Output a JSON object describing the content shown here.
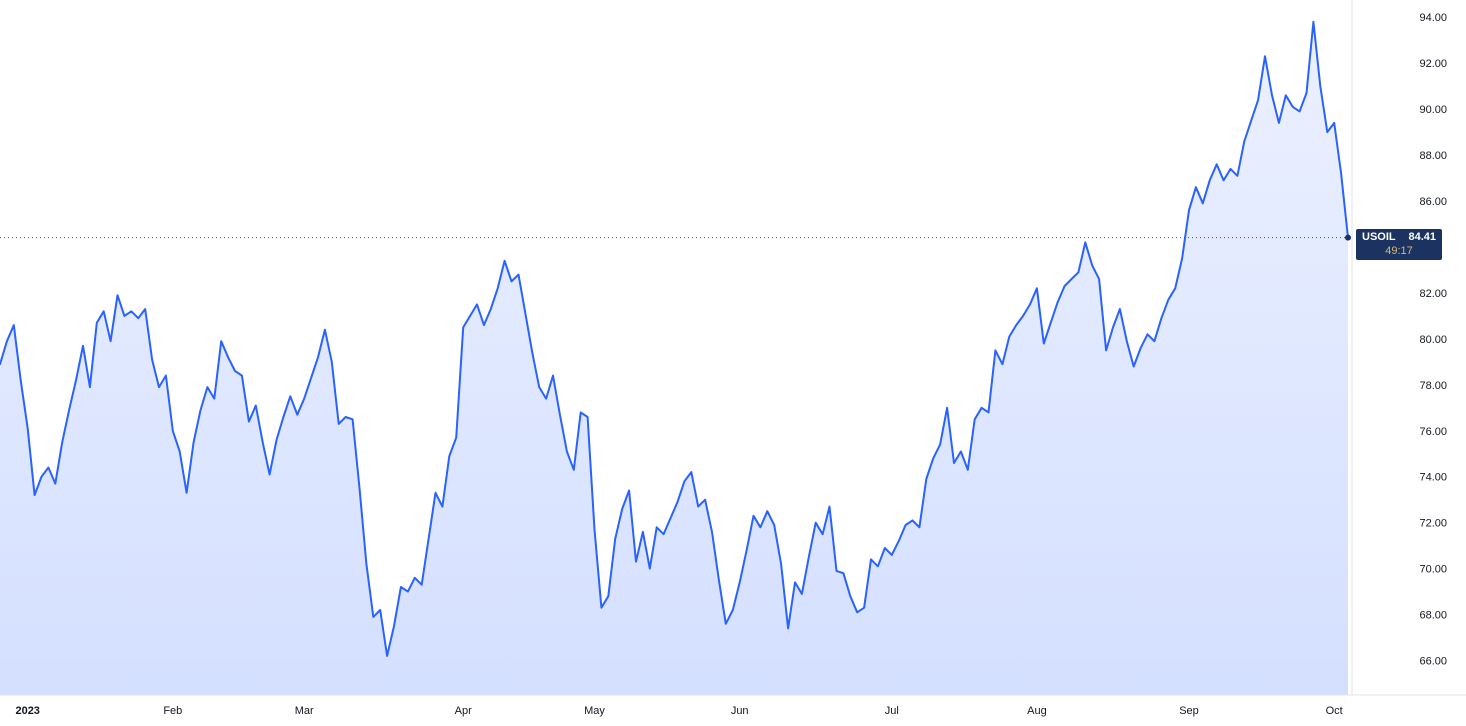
{
  "quote": {
    "symbol": "USOIL",
    "price_label": "84.41",
    "countdown": "49:17"
  },
  "colors": {
    "line": "#2962FF",
    "area_top": "rgba(41,98,255,0.09)",
    "area_bottom": "rgba(41,98,255,0.20)",
    "badge_bg": "#1c3261",
    "badge_text": "#ffffff",
    "countdown_text": "#d8b97c",
    "axis_text": "#131722",
    "separator": "#e0e3eb",
    "last_price_line": "#50535e"
  },
  "chart_data": {
    "type": "area",
    "series_name": "USOIL",
    "title": "",
    "xlabel": "",
    "ylabel": "",
    "grid": false,
    "legend": null,
    "last_price": 84.41,
    "ylim": [
      64.5,
      94.75
    ],
    "y_ticks": [
      {
        "value": 94,
        "label": "94.00"
      },
      {
        "value": 92,
        "label": "92.00"
      },
      {
        "value": 90,
        "label": "90.00"
      },
      {
        "value": 88,
        "label": "88.00"
      },
      {
        "value": 86,
        "label": "86.00"
      },
      {
        "value": 82,
        "label": "82.00"
      },
      {
        "value": 80,
        "label": "80.00"
      },
      {
        "value": 78,
        "label": "78.00"
      },
      {
        "value": 76,
        "label": "76.00"
      },
      {
        "value": 74,
        "label": "74.00"
      },
      {
        "value": 72,
        "label": "72.00"
      },
      {
        "value": 70,
        "label": "70.00"
      },
      {
        "value": 68,
        "label": "68.00"
      },
      {
        "value": 66,
        "label": "66.00"
      }
    ],
    "x_ticks": [
      {
        "label": "2023",
        "index": 4,
        "year": true
      },
      {
        "label": "Feb",
        "index": 25
      },
      {
        "label": "Mar",
        "index": 44
      },
      {
        "label": "Apr",
        "index": 67
      },
      {
        "label": "May",
        "index": 86
      },
      {
        "label": "Jun",
        "index": 107
      },
      {
        "label": "Jul",
        "index": 129
      },
      {
        "label": "Aug",
        "index": 150
      },
      {
        "label": "Sep",
        "index": 172
      },
      {
        "label": "Oct",
        "index": 193
      }
    ],
    "values": [
      78.9,
      79.9,
      80.6,
      78.2,
      76.1,
      73.2,
      74.0,
      74.4,
      73.7,
      75.5,
      76.9,
      78.2,
      79.7,
      77.9,
      80.7,
      81.2,
      79.9,
      81.9,
      81.0,
      81.2,
      80.9,
      81.3,
      79.1,
      77.9,
      78.4,
      76.0,
      75.1,
      73.3,
      75.5,
      76.9,
      77.9,
      77.4,
      79.9,
      79.2,
      78.6,
      78.4,
      76.4,
      77.1,
      75.5,
      74.1,
      75.6,
      76.6,
      77.5,
      76.7,
      77.4,
      78.3,
      79.2,
      80.4,
      79.0,
      76.3,
      76.6,
      76.5,
      73.5,
      70.2,
      67.9,
      68.2,
      66.2,
      67.5,
      69.2,
      69.0,
      69.6,
      69.3,
      71.3,
      73.3,
      72.7,
      74.9,
      75.7,
      80.5,
      81.0,
      81.5,
      80.6,
      81.3,
      82.2,
      83.4,
      82.5,
      82.8,
      81.1,
      79.4,
      77.9,
      77.4,
      78.4,
      76.7,
      75.1,
      74.3,
      76.8,
      76.6,
      71.7,
      68.3,
      68.8,
      71.3,
      72.6,
      73.4,
      70.3,
      71.6,
      70.0,
      71.8,
      71.5,
      72.2,
      72.9,
      73.8,
      74.2,
      72.7,
      73.0,
      71.6,
      69.5,
      67.6,
      68.2,
      69.4,
      70.8,
      72.3,
      71.8,
      72.5,
      71.9,
      70.2,
      67.4,
      69.4,
      68.9,
      70.5,
      72.0,
      71.5,
      72.7,
      69.9,
      69.8,
      68.8,
      68.1,
      68.3,
      70.4,
      70.1,
      70.9,
      70.6,
      71.2,
      71.9,
      72.1,
      71.8,
      73.9,
      74.8,
      75.4,
      77.0,
      74.6,
      75.1,
      74.3,
      76.5,
      77.0,
      76.8,
      79.5,
      78.9,
      80.1,
      80.6,
      81.0,
      81.5,
      82.2,
      79.8,
      80.7,
      81.6,
      82.3,
      82.6,
      82.9,
      84.2,
      83.2,
      82.6,
      79.5,
      80.5,
      81.3,
      79.9,
      78.8,
      79.6,
      80.2,
      79.9,
      80.9,
      81.7,
      82.2,
      83.5,
      85.6,
      86.6,
      85.9,
      86.9,
      87.6,
      86.9,
      87.4,
      87.1,
      88.6,
      89.5,
      90.4,
      92.3,
      90.6,
      89.4,
      90.6,
      90.1,
      89.9,
      90.7,
      93.8,
      91.0,
      89.0,
      89.4,
      87.2,
      84.41
    ]
  }
}
